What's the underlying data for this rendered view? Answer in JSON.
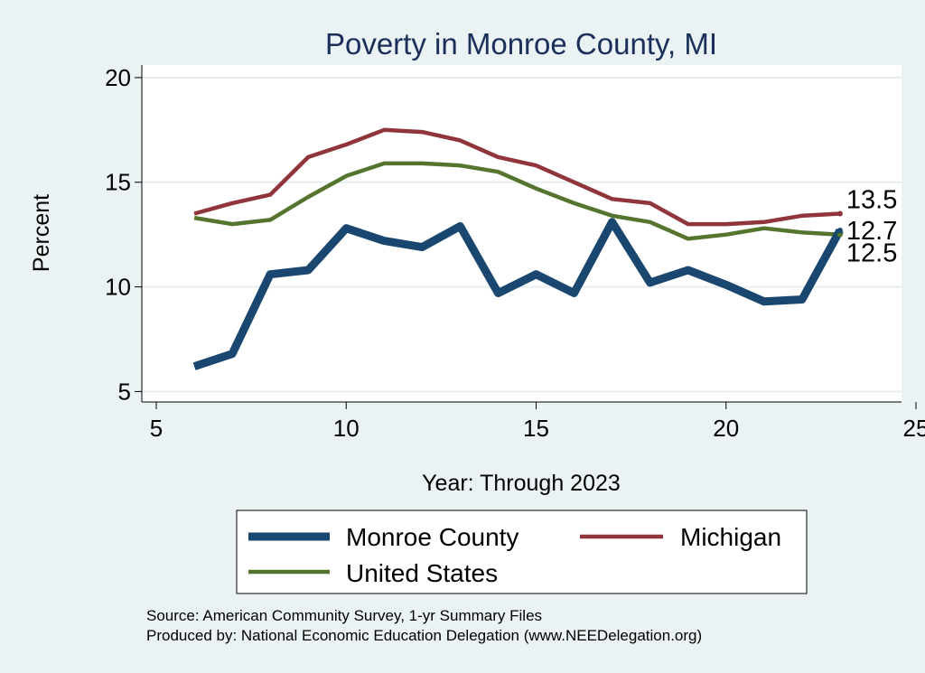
{
  "chart_data": {
    "type": "line",
    "title": "Poverty in Monroe County, MI",
    "xlabel": "Year: Through 2023",
    "ylabel": "Percent",
    "xlim": [
      5,
      25
    ],
    "ylim": [
      4.5,
      20.6
    ],
    "xticks": [
      "5",
      "10",
      "15",
      "20",
      "25"
    ],
    "yticks": [
      "5",
      "10",
      "15",
      "20"
    ],
    "grid": true,
    "series": [
      {
        "name": "Monroe County",
        "color": "#1a476f",
        "x": [
          6,
          7,
          8,
          9,
          10,
          11,
          12,
          13,
          14,
          15,
          16,
          17,
          18,
          19,
          20,
          21,
          22,
          23
        ],
        "values": [
          6.2,
          6.8,
          10.6,
          10.8,
          12.8,
          12.2,
          11.9,
          12.9,
          9.7,
          10.6,
          9.7,
          13.1,
          10.2,
          10.8,
          10.1,
          9.3,
          9.4,
          12.7
        ],
        "end_label": "12.7"
      },
      {
        "name": "Michigan",
        "color": "#90353b",
        "x": [
          6,
          7,
          8,
          9,
          10,
          11,
          12,
          13,
          14,
          15,
          16,
          17,
          18,
          19,
          20,
          21,
          22,
          23
        ],
        "values": [
          13.5,
          14.0,
          14.4,
          16.2,
          16.8,
          17.5,
          17.4,
          17.0,
          16.2,
          15.8,
          15.0,
          14.2,
          14.0,
          13.0,
          13.0,
          13.1,
          13.4,
          13.5
        ],
        "end_label": "13.5"
      },
      {
        "name": "United States",
        "color": "#55752f",
        "x": [
          6,
          7,
          8,
          9,
          10,
          11,
          12,
          13,
          14,
          15,
          16,
          17,
          18,
          19,
          20,
          21,
          22,
          23
        ],
        "values": [
          13.3,
          13.0,
          13.2,
          14.3,
          15.3,
          15.9,
          15.9,
          15.8,
          15.5,
          14.7,
          14.0,
          13.4,
          13.1,
          12.3,
          12.5,
          12.8,
          12.6,
          12.5
        ],
        "end_label": "12.5"
      }
    ],
    "legend": {
      "position": "bottom",
      "entries": [
        "Monroe County",
        "Michigan",
        "United States"
      ]
    }
  },
  "notes": {
    "source": "Source: American Community Survey, 1-yr Summary Files",
    "produced": "Produced by: National Economic Education Delegation (www.NEEDelegation.org)"
  },
  "colors": {
    "background": "#eaf2f3",
    "plot_bg": "#ffffff",
    "grid": "#e6eef0",
    "title": "#1a2f5a"
  }
}
